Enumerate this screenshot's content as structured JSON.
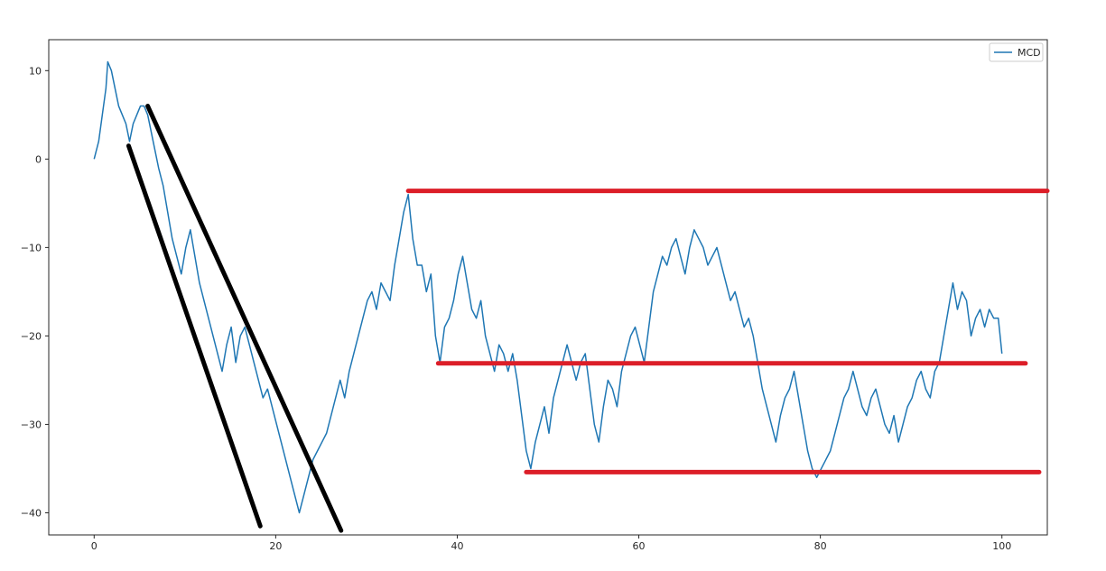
{
  "chart_data": {
    "type": "line",
    "title": "",
    "xlabel": "",
    "ylabel": "",
    "xlim": [
      -5,
      105
    ],
    "ylim": [
      -42.5,
      13.5
    ],
    "xticks": [
      0,
      20,
      40,
      60,
      80,
      100
    ],
    "yticks": [
      10,
      0,
      -10,
      -20,
      -30,
      -40
    ],
    "grid": false,
    "legend_position": "top-right",
    "series": [
      {
        "name": "MCD",
        "color": "#1f77b4",
        "points": [
          [
            0,
            0
          ],
          [
            0.5,
            2
          ],
          [
            0.9,
            5
          ],
          [
            1.3,
            8
          ],
          [
            1.5,
            11
          ],
          [
            1.9,
            10
          ],
          [
            2.3,
            8
          ],
          [
            2.7,
            6
          ],
          [
            3.1,
            5
          ],
          [
            3.5,
            4
          ],
          [
            3.9,
            2
          ],
          [
            4.3,
            4
          ],
          [
            4.7,
            5
          ],
          [
            5.1,
            6
          ],
          [
            5.5,
            6
          ],
          [
            5.9,
            5
          ],
          [
            6.3,
            3
          ],
          [
            6.7,
            1
          ],
          [
            7.1,
            -1
          ],
          [
            7.6,
            -3
          ],
          [
            8.1,
            -6
          ],
          [
            8.6,
            -9
          ],
          [
            9.1,
            -11
          ],
          [
            9.6,
            -13
          ],
          [
            10.1,
            -10
          ],
          [
            10.6,
            -8
          ],
          [
            11.1,
            -11
          ],
          [
            11.6,
            -14
          ],
          [
            12.1,
            -16
          ],
          [
            12.6,
            -18
          ],
          [
            13.1,
            -20
          ],
          [
            13.6,
            -22
          ],
          [
            14.1,
            -24
          ],
          [
            14.6,
            -21
          ],
          [
            15.1,
            -19
          ],
          [
            15.6,
            -23
          ],
          [
            16.1,
            -20
          ],
          [
            16.6,
            -19
          ],
          [
            17.1,
            -21
          ],
          [
            17.6,
            -23
          ],
          [
            18.1,
            -25
          ],
          [
            18.6,
            -27
          ],
          [
            19.1,
            -26
          ],
          [
            19.6,
            -28
          ],
          [
            20.1,
            -30
          ],
          [
            20.6,
            -32
          ],
          [
            21.1,
            -34
          ],
          [
            21.6,
            -36
          ],
          [
            22.1,
            -38
          ],
          [
            22.6,
            -40
          ],
          [
            23.1,
            -38
          ],
          [
            23.6,
            -36
          ],
          [
            24.1,
            -34
          ],
          [
            24.6,
            -33
          ],
          [
            25.1,
            -32
          ],
          [
            25.6,
            -31
          ],
          [
            26.1,
            -29
          ],
          [
            26.6,
            -27
          ],
          [
            27.1,
            -25
          ],
          [
            27.6,
            -27
          ],
          [
            28.1,
            -24
          ],
          [
            28.6,
            -22
          ],
          [
            29.1,
            -20
          ],
          [
            29.6,
            -18
          ],
          [
            30.1,
            -16
          ],
          [
            30.6,
            -15
          ],
          [
            31.1,
            -17
          ],
          [
            31.6,
            -14
          ],
          [
            32.1,
            -15
          ],
          [
            32.6,
            -16
          ],
          [
            33.1,
            -12
          ],
          [
            33.6,
            -9
          ],
          [
            34.1,
            -6
          ],
          [
            34.6,
            -4
          ],
          [
            35.1,
            -9
          ],
          [
            35.6,
            -12
          ],
          [
            36.1,
            -12
          ],
          [
            36.6,
            -15
          ],
          [
            37.1,
            -13
          ],
          [
            37.6,
            -20
          ],
          [
            38.1,
            -23
          ],
          [
            38.6,
            -19
          ],
          [
            39.1,
            -18
          ],
          [
            39.6,
            -16
          ],
          [
            40.1,
            -13
          ],
          [
            40.6,
            -11
          ],
          [
            41.1,
            -14
          ],
          [
            41.6,
            -17
          ],
          [
            42.1,
            -18
          ],
          [
            42.6,
            -16
          ],
          [
            43.1,
            -20
          ],
          [
            43.6,
            -22
          ],
          [
            44.1,
            -24
          ],
          [
            44.6,
            -21
          ],
          [
            45.1,
            -22
          ],
          [
            45.6,
            -24
          ],
          [
            46.1,
            -22
          ],
          [
            46.6,
            -25
          ],
          [
            47.1,
            -29
          ],
          [
            47.6,
            -33
          ],
          [
            48.1,
            -35
          ],
          [
            48.6,
            -32
          ],
          [
            49.1,
            -30
          ],
          [
            49.6,
            -28
          ],
          [
            50.1,
            -31
          ],
          [
            50.6,
            -27
          ],
          [
            51.1,
            -25
          ],
          [
            51.6,
            -23
          ],
          [
            52.1,
            -21
          ],
          [
            52.6,
            -23
          ],
          [
            53.1,
            -25
          ],
          [
            53.6,
            -23
          ],
          [
            54.1,
            -22
          ],
          [
            54.6,
            -26
          ],
          [
            55.1,
            -30
          ],
          [
            55.6,
            -32
          ],
          [
            56.1,
            -28
          ],
          [
            56.6,
            -25
          ],
          [
            57.1,
            -26
          ],
          [
            57.6,
            -28
          ],
          [
            58.1,
            -24
          ],
          [
            58.6,
            -22
          ],
          [
            59.1,
            -20
          ],
          [
            59.6,
            -19
          ],
          [
            60.1,
            -21
          ],
          [
            60.6,
            -23
          ],
          [
            61.1,
            -19
          ],
          [
            61.6,
            -15
          ],
          [
            62.1,
            -13
          ],
          [
            62.6,
            -11
          ],
          [
            63.1,
            -12
          ],
          [
            63.6,
            -10
          ],
          [
            64.1,
            -9
          ],
          [
            64.6,
            -11
          ],
          [
            65.1,
            -13
          ],
          [
            65.6,
            -10
          ],
          [
            66.1,
            -8
          ],
          [
            66.6,
            -9
          ],
          [
            67.1,
            -10
          ],
          [
            67.6,
            -12
          ],
          [
            68.1,
            -11
          ],
          [
            68.6,
            -10
          ],
          [
            69.1,
            -12
          ],
          [
            69.6,
            -14
          ],
          [
            70.1,
            -16
          ],
          [
            70.6,
            -15
          ],
          [
            71.1,
            -17
          ],
          [
            71.6,
            -19
          ],
          [
            72.1,
            -18
          ],
          [
            72.6,
            -20
          ],
          [
            73.1,
            -23
          ],
          [
            73.6,
            -26
          ],
          [
            74.1,
            -28
          ],
          [
            74.6,
            -30
          ],
          [
            75.1,
            -32
          ],
          [
            75.6,
            -29
          ],
          [
            76.1,
            -27
          ],
          [
            76.6,
            -26
          ],
          [
            77.1,
            -24
          ],
          [
            77.6,
            -27
          ],
          [
            78.1,
            -30
          ],
          [
            78.6,
            -33
          ],
          [
            79.1,
            -35
          ],
          [
            79.6,
            -36
          ],
          [
            80.1,
            -35
          ],
          [
            80.6,
            -34
          ],
          [
            81.1,
            -33
          ],
          [
            81.6,
            -31
          ],
          [
            82.1,
            -29
          ],
          [
            82.6,
            -27
          ],
          [
            83.1,
            -26
          ],
          [
            83.6,
            -24
          ],
          [
            84.1,
            -26
          ],
          [
            84.6,
            -28
          ],
          [
            85.1,
            -29
          ],
          [
            85.6,
            -27
          ],
          [
            86.1,
            -26
          ],
          [
            86.6,
            -28
          ],
          [
            87.1,
            -30
          ],
          [
            87.6,
            -31
          ],
          [
            88.1,
            -29
          ],
          [
            88.6,
            -32
          ],
          [
            89.1,
            -30
          ],
          [
            89.6,
            -28
          ],
          [
            90.1,
            -27
          ],
          [
            90.6,
            -25
          ],
          [
            91.1,
            -24
          ],
          [
            91.6,
            -26
          ],
          [
            92.1,
            -27
          ],
          [
            92.6,
            -24
          ],
          [
            93.1,
            -23
          ],
          [
            93.6,
            -20
          ],
          [
            94.1,
            -17
          ],
          [
            94.6,
            -14
          ],
          [
            95.1,
            -17
          ],
          [
            95.6,
            -15
          ],
          [
            96.1,
            -16
          ],
          [
            96.6,
            -20
          ],
          [
            97.1,
            -18
          ],
          [
            97.6,
            -17
          ],
          [
            98.1,
            -19
          ],
          [
            98.6,
            -17
          ],
          [
            99.1,
            -18
          ],
          [
            99.6,
            -18
          ],
          [
            100,
            -22
          ]
        ]
      }
    ],
    "annotations": [
      {
        "kind": "trendline",
        "color": "#000000",
        "from": [
          3.8,
          1.5
        ],
        "to": [
          18.3,
          -41.5
        ]
      },
      {
        "kind": "trendline",
        "color": "#000000",
        "from": [
          5.9,
          6
        ],
        "to": [
          27.2,
          -42
        ]
      },
      {
        "kind": "hline",
        "color": "#dc1e28",
        "y": -3.6,
        "x_from": 34.6,
        "x_to": 105
      },
      {
        "kind": "hline",
        "color": "#dc1e28",
        "y": -23.1,
        "x_from": 37.9,
        "x_to": 102.6
      },
      {
        "kind": "hline",
        "color": "#dc1e28",
        "y": -35.4,
        "x_from": 47.6,
        "x_to": 104.1
      }
    ]
  }
}
